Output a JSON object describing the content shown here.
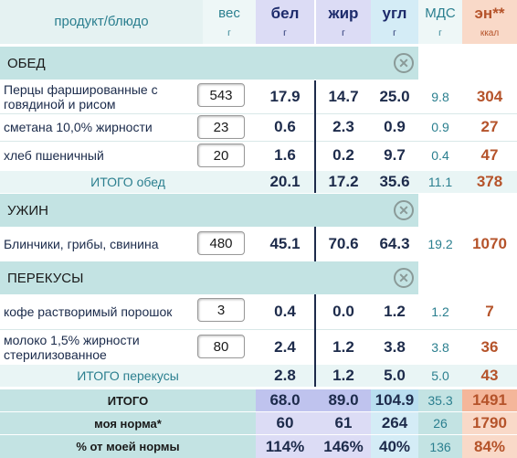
{
  "header": {
    "product": "продукт/блюдо",
    "weight": {
      "name": "вес",
      "unit": "г"
    },
    "protein": {
      "name": "бел",
      "unit": "г"
    },
    "fat": {
      "name": "жир",
      "unit": "г"
    },
    "carbs": {
      "name": "угл",
      "unit": "г"
    },
    "mds": {
      "name": "МДС",
      "unit": "г"
    },
    "energy": {
      "name": "эн**",
      "unit": "ккал"
    }
  },
  "sections": {
    "lunch": {
      "title": "ОБЕД",
      "items": [
        {
          "name": "Перцы фаршированные с говядиной и рисом",
          "weight": "543",
          "protein": "17.9",
          "fat": "14.7",
          "carbs": "25.0",
          "mds": "9.8",
          "energy": "304"
        },
        {
          "name": "сметана 10,0% жирности",
          "weight": "23",
          "protein": "0.6",
          "fat": "2.3",
          "carbs": "0.9",
          "mds": "0.9",
          "energy": "27"
        },
        {
          "name": "хлеб пшеничный",
          "weight": "20",
          "protein": "1.6",
          "fat": "0.2",
          "carbs": "9.7",
          "mds": "0.4",
          "energy": "47"
        }
      ],
      "total": {
        "label": "ИТОГО обед",
        "protein": "20.1",
        "fat": "17.2",
        "carbs": "35.6",
        "mds": "11.1",
        "energy": "378"
      }
    },
    "dinner": {
      "title": "УЖИН",
      "items": [
        {
          "name": "Блинчики, грибы, свинина",
          "weight": "480",
          "protein": "45.1",
          "fat": "70.6",
          "carbs": "64.3",
          "mds": "19.2",
          "energy": "1070"
        }
      ]
    },
    "snacks": {
      "title": "ПЕРЕКУСЫ",
      "items": [
        {
          "name": "кофе растворимый порошок",
          "weight": "3",
          "protein": "0.4",
          "fat": "0.0",
          "carbs": "1.2",
          "mds": "1.2",
          "energy": "7"
        },
        {
          "name": "молоко 1,5% жирности стерилизованное",
          "weight": "80",
          "protein": "2.4",
          "fat": "1.2",
          "carbs": "3.8",
          "mds": "3.8",
          "energy": "36"
        }
      ],
      "total": {
        "label": "ИТОГО перекусы",
        "protein": "2.8",
        "fat": "1.2",
        "carbs": "5.0",
        "mds": "5.0",
        "energy": "43"
      }
    }
  },
  "summary": {
    "total": {
      "label": "ИТОГО",
      "protein": "68.0",
      "fat": "89.0",
      "carbs": "104.9",
      "mds": "35.3",
      "energy": "1491"
    },
    "norm": {
      "label": "моя норма*",
      "protein": "60",
      "fat": "61",
      "carbs": "264",
      "mds": "26",
      "energy": "1790"
    },
    "percent": {
      "label": "% от моей нормы",
      "protein": "114%",
      "fat": "146%",
      "carbs": "40%",
      "mds": "136",
      "energy": "84%"
    }
  },
  "colors": {
    "section_bg": "#c3e3e3",
    "protein_bg": "#dcdcf5",
    "carbs_bg": "#d4ecf6",
    "energy_bg": "#f9d9c8",
    "energy_text": "#b5532a",
    "teal_text": "#2b7f8f"
  },
  "icons": {
    "section_close": "close-circle-icon"
  }
}
